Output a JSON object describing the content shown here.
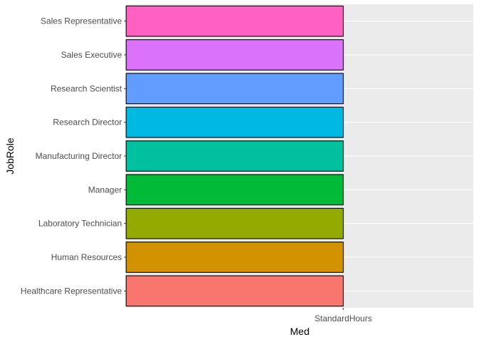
{
  "chart_data": {
    "type": "bar",
    "orientation": "horizontal",
    "xlabel": "Med",
    "ylabel": "JobRole",
    "x_categories": [
      "StandardHours"
    ],
    "categories": [
      "Healthcare Representative",
      "Human Resources",
      "Laboratory Technician",
      "Manager",
      "Manufacturing Director",
      "Research Director",
      "Research Scientist",
      "Sales Executive",
      "Sales Representative"
    ],
    "values": [
      "StandardHours",
      "StandardHours",
      "StandardHours",
      "StandardHours",
      "StandardHours",
      "StandardHours",
      "StandardHours",
      "StandardHours",
      "StandardHours"
    ],
    "colors": [
      "#F8766D",
      "#D39200",
      "#93AA00",
      "#00BA38",
      "#00C19F",
      "#00B9E3",
      "#619CFF",
      "#DB72FB",
      "#FF61C3"
    ],
    "panel_background": "#EBEBEB",
    "grid_color": "#FFFFFF",
    "bar_outline": "#000000",
    "grid": true,
    "legend": "none"
  }
}
